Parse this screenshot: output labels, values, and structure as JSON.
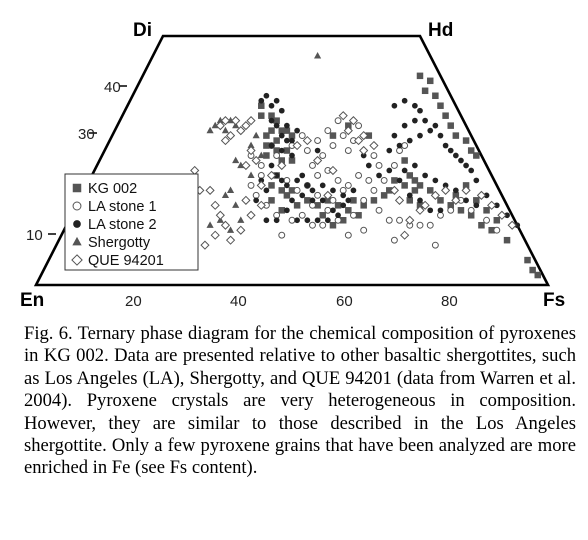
{
  "chart_data": {
    "type": "scatter",
    "title": "",
    "corners": {
      "top_left": "Di",
      "top_right": "Hd",
      "bottom_left": "En",
      "bottom_right": "Fs"
    },
    "x_ticks": [
      "20",
      "40",
      "60",
      "80"
    ],
    "y_ticks": [
      "10",
      "30",
      "40"
    ],
    "legend": {
      "placement": "lower-left"
    },
    "series": [
      {
        "name": "KG 002",
        "marker": "square-filled",
        "color": "#555555",
        "points": [
          [
            44,
            36
          ],
          [
            44,
            34
          ],
          [
            46,
            34
          ],
          [
            47,
            33
          ],
          [
            48,
            31
          ],
          [
            49,
            31
          ],
          [
            50,
            30
          ],
          [
            46,
            31
          ],
          [
            45,
            30
          ],
          [
            47,
            29
          ],
          [
            45,
            26
          ],
          [
            47,
            27
          ],
          [
            49,
            27
          ],
          [
            45,
            28
          ],
          [
            48,
            25
          ],
          [
            50,
            25
          ],
          [
            47,
            22
          ],
          [
            46,
            20
          ],
          [
            48,
            19
          ],
          [
            50,
            19
          ],
          [
            49,
            18
          ],
          [
            46,
            17
          ],
          [
            48,
            15
          ],
          [
            51,
            16
          ],
          [
            53,
            17
          ],
          [
            55,
            16
          ],
          [
            57,
            17
          ],
          [
            59,
            16
          ],
          [
            61,
            15
          ],
          [
            56,
            14
          ],
          [
            58,
            12
          ],
          [
            60,
            13
          ],
          [
            62,
            17
          ],
          [
            63,
            14
          ],
          [
            64,
            16
          ],
          [
            66,
            17
          ],
          [
            68,
            18
          ],
          [
            69,
            19
          ],
          [
            70,
            21
          ],
          [
            72,
            20
          ],
          [
            74,
            19
          ],
          [
            73,
            17
          ],
          [
            75,
            16
          ],
          [
            79,
            17
          ],
          [
            81,
            16
          ],
          [
            83,
            15
          ],
          [
            85,
            14
          ],
          [
            87,
            12
          ],
          [
            89,
            11
          ],
          [
            92,
            9
          ],
          [
            96,
            5
          ],
          [
            97,
            3
          ],
          [
            98,
            2
          ],
          [
            61,
            32
          ],
          [
            65,
            30
          ],
          [
            58,
            30
          ],
          [
            75,
            42
          ],
          [
            77,
            41
          ],
          [
            76,
            39
          ],
          [
            78,
            38
          ],
          [
            79,
            36
          ],
          [
            80,
            34
          ],
          [
            81,
            32
          ],
          [
            82,
            30
          ],
          [
            84,
            29
          ],
          [
            85,
            27
          ],
          [
            86,
            26
          ],
          [
            72,
            25
          ],
          [
            73,
            22
          ],
          [
            74,
            21
          ],
          [
            75,
            20
          ],
          [
            77,
            19
          ],
          [
            82,
            18
          ],
          [
            84,
            20
          ],
          [
            86,
            17
          ],
          [
            88,
            15
          ],
          [
            90,
            13
          ]
        ]
      },
      {
        "name": "LA stone 1",
        "marker": "circle-open",
        "color": "#555555",
        "points": [
          [
            46,
            28
          ],
          [
            47,
            26
          ],
          [
            50,
            28
          ],
          [
            52,
            30
          ],
          [
            53,
            27
          ],
          [
            55,
            29
          ],
          [
            56,
            26
          ],
          [
            57,
            31
          ],
          [
            58,
            28
          ],
          [
            60,
            30
          ],
          [
            61,
            27
          ],
          [
            62,
            29
          ],
          [
            63,
            32
          ],
          [
            59,
            33
          ],
          [
            54,
            24
          ],
          [
            55,
            22
          ],
          [
            57,
            23
          ],
          [
            59,
            21
          ],
          [
            61,
            20
          ],
          [
            63,
            22
          ],
          [
            65,
            21
          ],
          [
            66,
            19
          ],
          [
            64,
            17
          ],
          [
            62,
            14
          ],
          [
            59,
            13
          ],
          [
            57,
            15
          ],
          [
            54,
            16
          ],
          [
            52,
            14
          ],
          [
            50,
            13
          ],
          [
            47,
            14
          ],
          [
            45,
            16
          ],
          [
            43,
            18
          ],
          [
            42,
            20
          ],
          [
            44,
            22
          ],
          [
            49,
            21
          ],
          [
            51,
            19
          ],
          [
            53,
            20
          ],
          [
            55,
            18
          ],
          [
            58,
            17
          ],
          [
            60,
            19
          ],
          [
            67,
            15
          ],
          [
            69,
            13
          ],
          [
            71,
            13
          ],
          [
            73,
            12
          ],
          [
            75,
            12
          ],
          [
            77,
            12
          ],
          [
            79,
            14
          ],
          [
            81,
            15
          ],
          [
            83,
            17
          ],
          [
            85,
            15
          ],
          [
            88,
            13
          ],
          [
            90,
            11
          ],
          [
            70,
            9
          ],
          [
            78,
            8
          ],
          [
            66,
            26
          ],
          [
            67,
            24
          ],
          [
            68,
            21
          ],
          [
            70,
            24
          ],
          [
            71,
            27
          ],
          [
            72,
            28
          ],
          [
            54,
            12
          ],
          [
            56,
            12
          ],
          [
            48,
            10
          ],
          [
            61,
            10
          ],
          [
            64,
            11
          ],
          [
            44,
            24
          ],
          [
            42,
            26
          ]
        ]
      },
      {
        "name": "LA stone 2",
        "marker": "circle-filled",
        "color": "#222222",
        "points": [
          [
            44,
            37
          ],
          [
            45,
            38
          ],
          [
            47,
            37
          ],
          [
            46,
            36
          ],
          [
            48,
            35
          ],
          [
            46,
            33
          ],
          [
            47,
            32
          ],
          [
            49,
            32
          ],
          [
            48,
            30
          ],
          [
            49,
            29
          ],
          [
            50,
            29
          ],
          [
            51,
            31
          ],
          [
            46,
            28
          ],
          [
            48,
            27
          ],
          [
            50,
            26
          ],
          [
            46,
            24
          ],
          [
            47,
            22
          ],
          [
            48,
            21
          ],
          [
            49,
            20
          ],
          [
            51,
            21
          ],
          [
            52,
            22
          ],
          [
            53,
            20
          ],
          [
            54,
            19
          ],
          [
            56,
            20
          ],
          [
            58,
            19
          ],
          [
            60,
            18
          ],
          [
            62,
            19
          ],
          [
            50,
            17
          ],
          [
            52,
            18
          ],
          [
            54,
            17
          ],
          [
            56,
            17
          ],
          [
            58,
            15
          ],
          [
            60,
            16
          ],
          [
            61,
            17
          ],
          [
            49,
            15
          ],
          [
            51,
            13
          ],
          [
            53,
            13
          ],
          [
            55,
            13
          ],
          [
            57,
            13
          ],
          [
            59,
            14
          ],
          [
            47,
            13
          ],
          [
            45,
            13
          ],
          [
            45,
            19
          ],
          [
            44,
            21
          ],
          [
            43,
            17
          ],
          [
            70,
            30
          ],
          [
            72,
            32
          ],
          [
            74,
            33
          ],
          [
            75,
            30
          ],
          [
            73,
            29
          ],
          [
            71,
            28
          ],
          [
            69,
            27
          ],
          [
            70,
            36
          ],
          [
            72,
            37
          ],
          [
            74,
            36
          ],
          [
            75,
            35
          ],
          [
            76,
            33
          ],
          [
            77,
            31
          ],
          [
            78,
            32
          ],
          [
            79,
            30
          ],
          [
            80,
            28
          ],
          [
            81,
            27
          ],
          [
            82,
            26
          ],
          [
            83,
            25
          ],
          [
            84,
            24
          ],
          [
            85,
            23
          ],
          [
            86,
            21
          ],
          [
            72,
            23
          ],
          [
            74,
            24
          ],
          [
            76,
            22
          ],
          [
            78,
            21
          ],
          [
            80,
            20
          ],
          [
            82,
            19
          ],
          [
            84,
            17
          ],
          [
            86,
            16
          ],
          [
            88,
            18
          ],
          [
            90,
            16
          ],
          [
            92,
            14
          ],
          [
            94,
            12
          ],
          [
            73,
            18
          ],
          [
            75,
            17
          ],
          [
            77,
            15
          ],
          [
            79,
            15
          ],
          [
            71,
            21
          ],
          [
            69,
            23
          ],
          [
            67,
            22
          ],
          [
            65,
            24
          ],
          [
            64,
            26
          ],
          [
            55,
            27
          ]
        ]
      },
      {
        "name": "Shergotty",
        "marker": "triangle-filled",
        "color": "#555555",
        "points": [
          [
            35,
            32
          ],
          [
            36,
            33
          ],
          [
            37,
            31
          ],
          [
            38,
            33
          ],
          [
            39,
            32
          ],
          [
            34,
            31
          ],
          [
            27,
            13
          ],
          [
            28,
            10
          ],
          [
            30,
            9
          ],
          [
            26,
            15
          ],
          [
            29,
            16
          ],
          [
            30,
            12
          ],
          [
            34,
            12
          ],
          [
            36,
            13
          ],
          [
            38,
            11
          ],
          [
            40,
            13
          ],
          [
            39,
            16
          ],
          [
            38,
            19
          ],
          [
            37,
            18
          ],
          [
            42,
            22
          ],
          [
            55,
            46
          ],
          [
            43,
            30
          ],
          [
            42,
            28
          ],
          [
            44,
            26
          ],
          [
            40,
            24
          ],
          [
            39,
            25
          ]
        ]
      },
      {
        "name": "QUE 94201",
        "marker": "diamond-open",
        "color": "#555555",
        "points": [
          [
            36,
            32
          ],
          [
            37,
            33
          ],
          [
            39,
            33
          ],
          [
            40,
            31
          ],
          [
            41,
            32
          ],
          [
            42,
            33
          ],
          [
            38,
            30
          ],
          [
            37,
            29
          ],
          [
            42,
            27
          ],
          [
            43,
            25
          ],
          [
            41,
            24
          ],
          [
            31,
            23
          ],
          [
            32,
            19
          ],
          [
            34,
            19
          ],
          [
            35,
            16
          ],
          [
            36,
            14
          ],
          [
            37,
            12
          ],
          [
            33,
            8
          ],
          [
            35,
            10
          ],
          [
            38,
            9
          ],
          [
            40,
            11
          ],
          [
            42,
            14
          ],
          [
            41,
            17
          ],
          [
            44,
            20
          ],
          [
            46,
            22
          ],
          [
            48,
            24
          ],
          [
            44,
            16
          ],
          [
            60,
            34
          ],
          [
            61,
            31
          ],
          [
            62,
            33
          ],
          [
            63,
            29
          ],
          [
            64,
            30
          ],
          [
            66,
            28
          ],
          [
            64,
            27
          ],
          [
            70,
            19
          ],
          [
            71,
            17
          ],
          [
            75,
            15
          ],
          [
            73,
            13
          ],
          [
            76,
            16
          ],
          [
            78,
            18
          ],
          [
            80,
            19
          ],
          [
            82,
            17
          ],
          [
            84,
            19
          ],
          [
            87,
            18
          ],
          [
            89,
            16
          ],
          [
            91,
            14
          ],
          [
            93,
            12
          ],
          [
            72,
            10
          ],
          [
            57,
            18
          ],
          [
            58,
            23
          ],
          [
            55,
            25
          ],
          [
            53,
            29
          ],
          [
            51,
            28
          ]
        ]
      }
    ]
  },
  "caption": "Fig. 6. Ternary phase diagram for the chemical composition of pyroxenes in KG 002. Data are presented relative to other basaltic shergottites, such as Los Angeles (LA), Shergotty, and QUE 94201 (data from Warren et al. 2004). Pyroxene crystals are very heterogeneous in composition. However, they are similar to those described in the Los Angeles shergottite. Only a few pyroxene grains that have been analyzed are more enriched in Fe (see Fs content)."
}
